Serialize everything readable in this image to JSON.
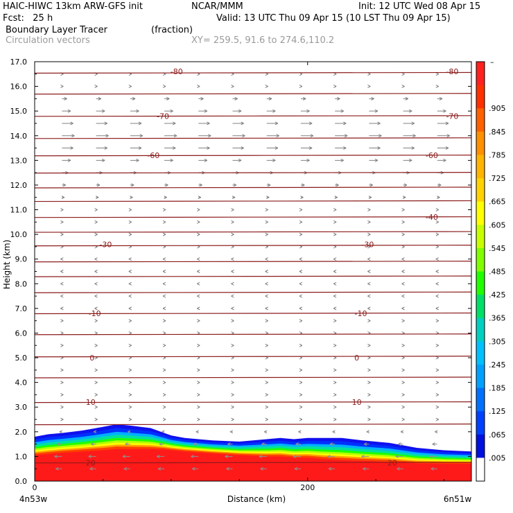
{
  "header": {
    "title_left": "HAIC-HIWC 13km ARW-GFS init",
    "org": "NCAR/MMM",
    "init": "Init: 12 UTC Wed 08 Apr 15",
    "fcst": "Fcst:   25 h",
    "valid": "Valid: 13 UTC Thu 09 Apr 15 (10 LST Thu 09 Apr 15)",
    "field": "Boundary Layer Tracer",
    "field_units": "(fraction)",
    "vectors": "Circulation vectors",
    "xy": "XY= 259.5, 91.6 to 274.6,110.2"
  },
  "chart_data": {
    "type": "heatmap",
    "title": "Boundary Layer Tracer (fraction)",
    "xlabel": "Distance (km)",
    "ylabel": "Height (km)",
    "xlim": [
      0,
      320
    ],
    "ylim": [
      0,
      17
    ],
    "x_ticks": [
      {
        "value": 0,
        "label": "0"
      },
      {
        "value": 200,
        "label": "200"
      }
    ],
    "x_end_labels": {
      "left": "4n53w",
      "right": "6n51w"
    },
    "y_ticks": [
      0.0,
      1.0,
      2.0,
      3.0,
      4.0,
      5.0,
      6.0,
      7.0,
      8.0,
      9.0,
      10.0,
      11.0,
      12.0,
      13.0,
      14.0,
      15.0,
      16.0,
      17.0
    ],
    "y_tick_labels": [
      "0.0",
      "1.0",
      "2.0",
      "3.0",
      "4.0",
      "5.0",
      "6.0",
      "7.0",
      "8.0",
      "9.0",
      "10.0",
      "11.0",
      "12.0",
      "13.0",
      "14.0",
      "15.0",
      "16.0",
      "17.0"
    ],
    "colorbar": {
      "top_label": "–",
      "labels": [
        ".905",
        ".845",
        ".785",
        ".725",
        ".665",
        ".605",
        ".545",
        ".485",
        ".425",
        ".365",
        ".305",
        ".245",
        ".185",
        ".125",
        ".065",
        ".005"
      ],
      "colors": [
        "#ff2020",
        "#ff3000",
        "#ff6000",
        "#ff9000",
        "#ffb400",
        "#ffd200",
        "#ffff00",
        "#c8ff00",
        "#80ff00",
        "#20ff00",
        "#00e066",
        "#00d0c0",
        "#00c0ff",
        "#00a0ff",
        "#0070ff",
        "#0040ff",
        "#0010e0",
        "#ffffff"
      ]
    },
    "boundary_layer_top": {
      "x": [
        0,
        10,
        20,
        35,
        50,
        60,
        70,
        85,
        95,
        100,
        110,
        130,
        150,
        170,
        180,
        190,
        200,
        210,
        225,
        240,
        260,
        280,
        300,
        320
      ],
      "top": [
        1.8,
        1.9,
        1.95,
        2.05,
        2.2,
        2.3,
        2.25,
        2.15,
        1.95,
        1.85,
        1.75,
        1.65,
        1.6,
        1.7,
        1.75,
        1.7,
        1.75,
        1.75,
        1.75,
        1.65,
        1.55,
        1.35,
        1.25,
        1.2
      ],
      "red_top": [
        1.05,
        1.1,
        1.15,
        1.2,
        1.25,
        1.3,
        1.3,
        1.3,
        1.28,
        1.25,
        1.2,
        1.12,
        1.05,
        1.0,
        1.0,
        0.95,
        0.95,
        0.9,
        0.85,
        0.82,
        0.78,
        0.72,
        0.7,
        0.7
      ]
    },
    "temperature_contours": [
      {
        "label": "-80",
        "y": 16.6,
        "label_x": [
          104,
          306
        ]
      },
      {
        "label": "-70",
        "y": 14.8,
        "label_x": [
          94,
          306
        ]
      },
      {
        "label": "-60",
        "y": 13.2,
        "label_x": [
          87,
          291
        ]
      },
      {
        "label": "-40",
        "y": 10.7,
        "label_x": [
          291
        ]
      },
      {
        "label": "-30",
        "y": 9.6,
        "label_x": [
          52,
          244
        ]
      },
      {
        "label": "-10",
        "y": 6.8,
        "label_x": [
          44,
          239
        ]
      },
      {
        "label": "0",
        "y": 5.0,
        "label_x": [
          42,
          236
        ]
      },
      {
        "label": "10",
        "y": 3.2,
        "label_x": [
          41,
          236
        ]
      },
      {
        "label": "20",
        "y": 0.75,
        "label_x": [
          41,
          262
        ]
      }
    ],
    "temperature_lines_y": [
      16.55,
      15.7,
      14.8,
      13.9,
      13.2,
      12.5,
      11.9,
      11.35,
      10.7,
      10.1,
      9.55,
      8.9,
      8.3,
      7.65,
      6.8,
      5.95,
      5.05,
      4.2,
      3.2,
      2.3,
      0.75
    ],
    "vectors": {
      "columns_x": [
        0,
        20,
        45,
        70,
        95,
        120,
        145,
        170,
        195,
        220,
        245,
        270,
        295,
        320
      ],
      "levels": [
        0.5,
        1.0,
        1.5,
        2.0,
        2.5,
        3.0,
        3.5,
        4.0,
        4.5,
        5.0,
        5.5,
        6.0,
        6.5,
        7.0,
        7.5,
        8.0,
        8.5,
        9.0,
        9.5,
        10.0,
        10.5,
        11.0,
        11.5,
        12.0,
        12.5,
        13.0,
        13.5,
        14.0,
        14.5,
        15.0,
        15.5,
        16.0,
        16.5
      ],
      "u_by_level": [
        -0.5,
        -0.6,
        -0.4,
        -0.2,
        0.0,
        0.1,
        0.1,
        0.1,
        0.1,
        0.1,
        0.1,
        0.1,
        0.1,
        -0.1,
        -0.1,
        -0.1,
        -0.1,
        -0.1,
        0.1,
        0.1,
        0.1,
        0.1,
        0.2,
        0.3,
        0.5,
        0.7,
        0.9,
        1.0,
        0.9,
        0.7,
        0.4,
        0.1,
        0.0
      ]
    }
  }
}
